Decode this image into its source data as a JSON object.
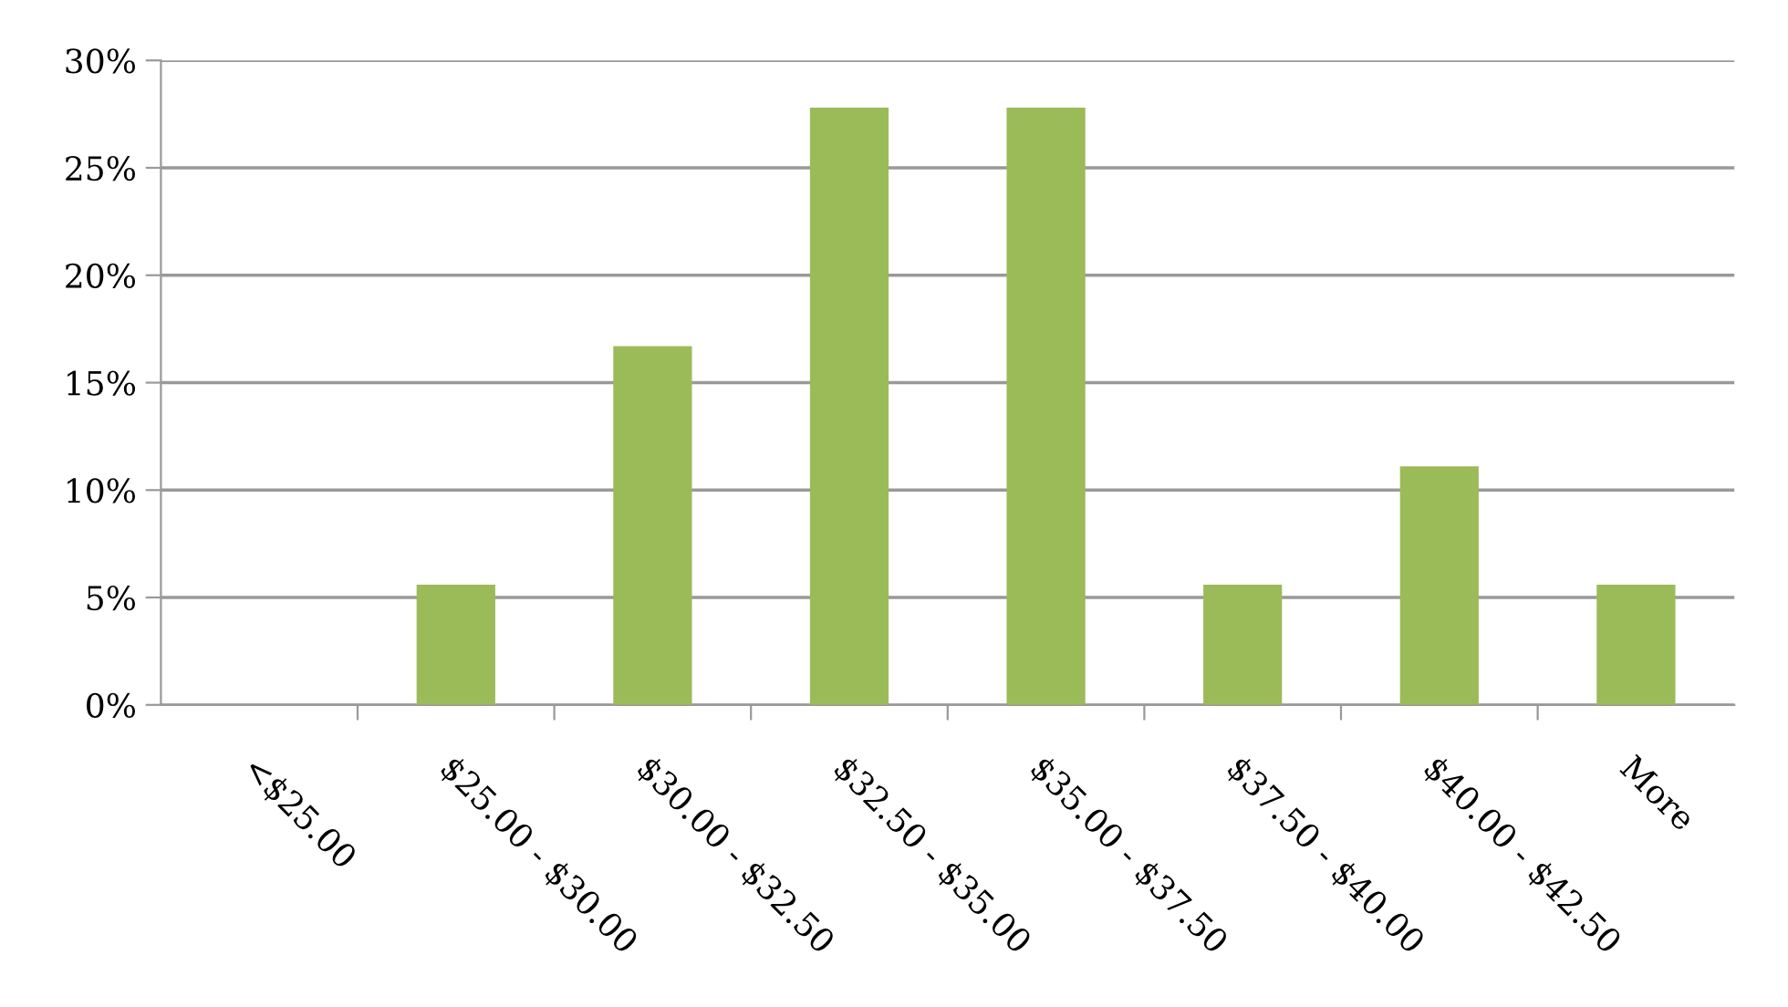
{
  "chart_data": {
    "type": "bar",
    "categories": [
      "<$25.00",
      "$25.00 - $30.00",
      "$30.00 - $32.50",
      "$32.50 - $35.00",
      "$35.00 - $37.50",
      "$37.50 - $40.00",
      "$40.00 - $42.50",
      "More"
    ],
    "values": [
      0,
      5.6,
      16.7,
      27.8,
      27.8,
      5.6,
      11.1,
      5.6
    ],
    "color": "#9bbb59",
    "ylim": [
      0,
      30
    ],
    "yticks": [
      {
        "value": 0,
        "label": "0%"
      },
      {
        "value": 5,
        "label": "5%"
      },
      {
        "value": 10,
        "label": "10%"
      },
      {
        "value": 15,
        "label": "15%"
      },
      {
        "value": 20,
        "label": "20%"
      },
      {
        "value": 25,
        "label": "25%"
      },
      {
        "value": 30,
        "label": "30%"
      }
    ],
    "grid": "y"
  }
}
